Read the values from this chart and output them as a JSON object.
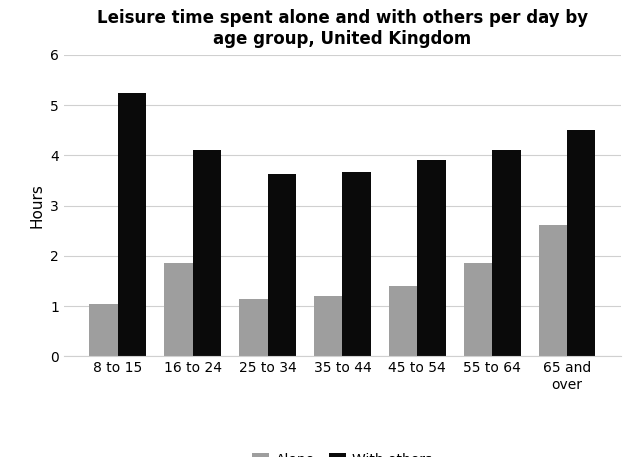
{
  "title": "Leisure time spent alone and with others per day by\nage group, United Kingdom",
  "categories": [
    "8 to 15",
    "16 to 24",
    "25 to 34",
    "35 to 44",
    "45 to 54",
    "55 to 64",
    "65 and\nover"
  ],
  "alone": [
    1.05,
    1.85,
    1.15,
    1.2,
    1.4,
    1.85,
    2.62
  ],
  "with_others": [
    5.25,
    4.1,
    3.62,
    3.67,
    3.9,
    4.1,
    4.5
  ],
  "alone_color": "#9e9e9e",
  "with_others_color": "#0a0a0a",
  "ylabel": "Hours",
  "ylim": [
    0,
    6
  ],
  "yticks": [
    0,
    1,
    2,
    3,
    4,
    5,
    6
  ],
  "legend_labels": [
    "Alone",
    "With others"
  ],
  "bar_width": 0.38,
  "title_fontsize": 12,
  "axis_label_fontsize": 11,
  "tick_fontsize": 10,
  "legend_fontsize": 10
}
